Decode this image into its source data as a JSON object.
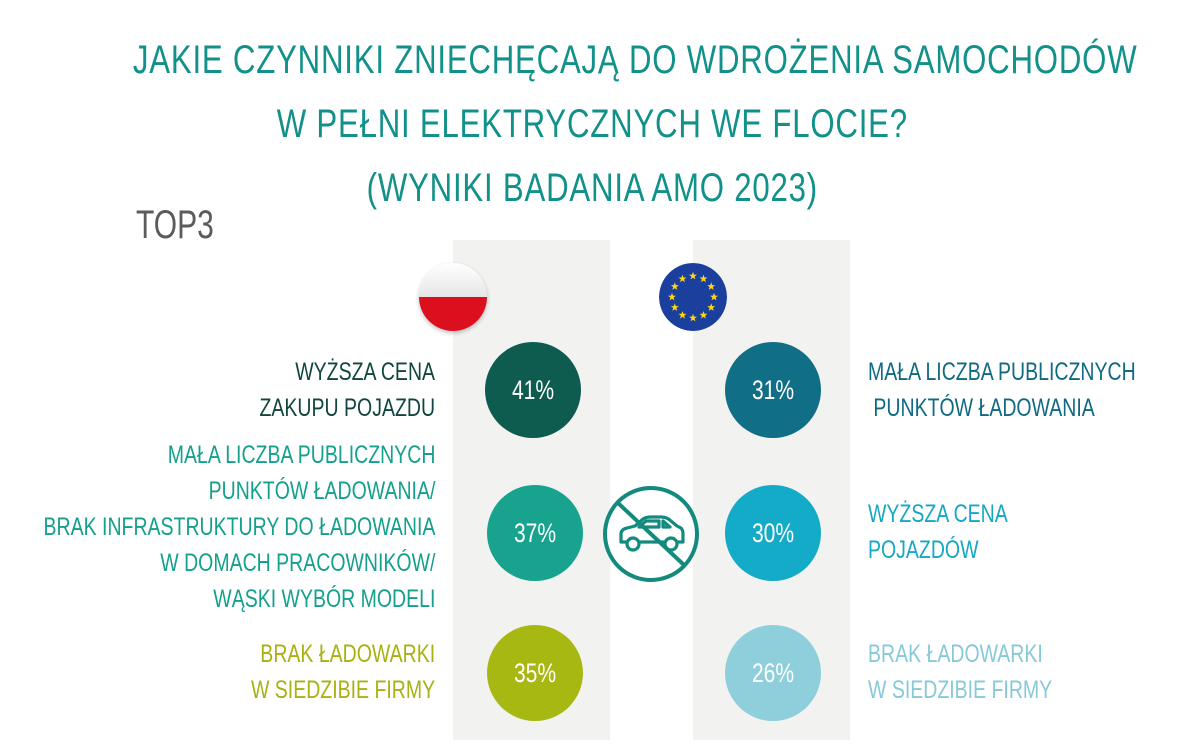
{
  "title": {
    "line1": "JAKIE CZYNNIKI ZNIECHĘCAJĄ DO WDROŻENIA SAMOCHODÓW",
    "line2": "W PEŁNI ELEKTRYCZNYCH WE FLOCIE?",
    "line3": "(WYNIKI BADANIA AMO 2023)"
  },
  "subtitle": "TOP3",
  "colors": {
    "title": "#12908a",
    "band": "#f2f2f1"
  },
  "icons": {
    "left_flag": "poland-flag-icon",
    "right_flag": "eu-flag-icon",
    "center": "no-car-icon"
  },
  "chart_data": [
    {
      "type": "bubble-list",
      "group": "poland",
      "items": [
        {
          "rank": 1,
          "value": 41,
          "label": "41%",
          "lines": [
            "WYŻSZA CENA",
            "ZAKUPU POJAZDU"
          ],
          "color": "#0e5c50",
          "text_color": "#10463f"
        },
        {
          "rank": 2,
          "value": 37,
          "label": "37%",
          "lines": [
            "MAŁA LICZBA PUBLICZNYCH",
            "PUNKTÓW ŁADOWANIA/",
            "BRAK INFRASTRUKTURY DO ŁADOWANIA",
            "W DOMACH PRACOWNIKÓW/",
            "WĄSKI WYBÓR MODELI"
          ],
          "color": "#17a38d",
          "text_color": "#14a08c"
        },
        {
          "rank": 3,
          "value": 35,
          "label": "35%",
          "lines": [
            "BRAK ŁADOWARKI",
            "W SIEDZIBIE FIRMY"
          ],
          "color": "#a8b813",
          "text_color": "#a8b10f"
        }
      ]
    },
    {
      "type": "bubble-list",
      "group": "eu",
      "items": [
        {
          "rank": 1,
          "value": 31,
          "label": "31%",
          "lines": [
            "MAŁA LICZBA PUBLICZNYCH",
            " PUNKTÓW ŁADOWANIA"
          ],
          "color": "#106e86",
          "text_color": "#0f6a82"
        },
        {
          "rank": 2,
          "value": 30,
          "label": "30%",
          "lines": [
            "WYŻSZA CENA",
            "POJAZDÓW"
          ],
          "color": "#14abc8",
          "text_color": "#15a7c3"
        },
        {
          "rank": 3,
          "value": 26,
          "label": "26%",
          "lines": [
            "BRAK ŁADOWARKI",
            "W SIEDZIBIE FIRMY"
          ],
          "color": "#8fcfdc",
          "text_color": "#86c9d8"
        }
      ]
    }
  ]
}
